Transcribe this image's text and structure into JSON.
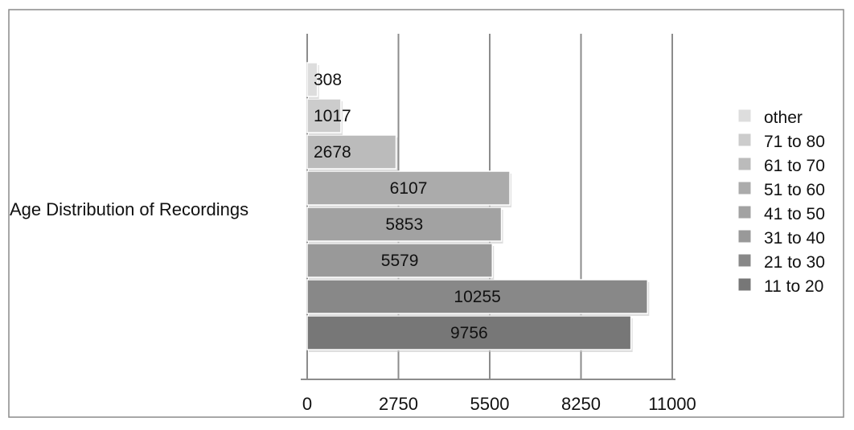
{
  "chart_data": {
    "type": "bar",
    "orientation": "horizontal",
    "category_label": "Age Distribution of Recordings",
    "series": [
      {
        "name": "11 to 20",
        "value": 9756,
        "color": "#777777"
      },
      {
        "name": "21 to 30",
        "value": 10255,
        "color": "#888888"
      },
      {
        "name": "31 to 40",
        "value": 5579,
        "color": "#999999"
      },
      {
        "name": "41 to 50",
        "value": 5853,
        "color": "#a2a2a2"
      },
      {
        "name": "51 to 60",
        "value": 6107,
        "color": "#ababab"
      },
      {
        "name": "61 to 70",
        "value": 2678,
        "color": "#bbbbbb"
      },
      {
        "name": "71 to 80",
        "value": 1017,
        "color": "#cccccc"
      },
      {
        "name": "other",
        "value": 308,
        "color": "#dddddd"
      }
    ],
    "xlim": [
      0,
      11000
    ],
    "xticks": [
      0,
      2750,
      5500,
      8250,
      11000
    ],
    "xtick_labels": [
      "0",
      "2750",
      "5500",
      "8250",
      "11000"
    ],
    "grid": "vertical",
    "legend_position": "right",
    "legend_order": [
      "other",
      "71 to 80",
      "61 to 70",
      "51 to 60",
      "41 to 50",
      "31 to 40",
      "21 to 30",
      "11 to 20"
    ]
  }
}
